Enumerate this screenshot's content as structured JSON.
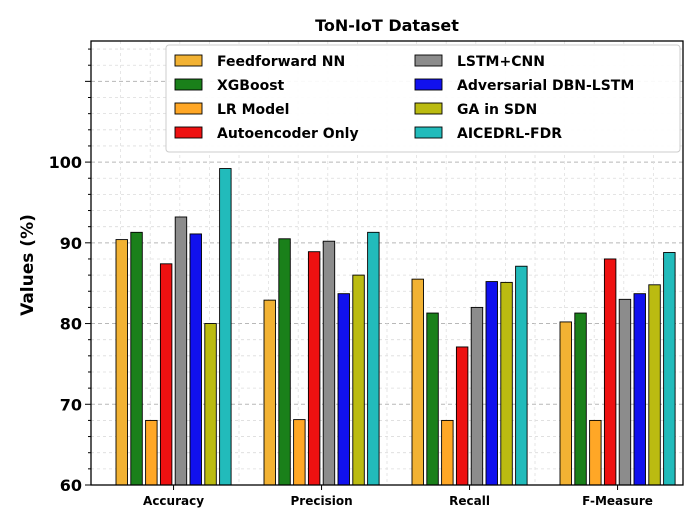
{
  "chart_data": {
    "type": "bar",
    "title": "ToN-IoT Dataset",
    "xlabel": "",
    "ylabel": "Values (%)",
    "ylim": [
      60,
      115
    ],
    "yticks": [
      60,
      70,
      80,
      90,
      100
    ],
    "grid": true,
    "legend_position": "top",
    "categories": [
      "Accuracy",
      "Precision",
      "Recall",
      "F-Measure"
    ],
    "series": [
      {
        "name": "Feedforward NN",
        "color": "#F2B233",
        "values": [
          90.4,
          82.9,
          85.5,
          80.2
        ]
      },
      {
        "name": "XGBoost",
        "color": "#1A801A",
        "values": [
          91.3,
          90.5,
          81.3,
          81.3
        ]
      },
      {
        "name": "LR Model",
        "color": "#FFA726",
        "values": [
          68.0,
          68.1,
          68.0,
          68.0
        ]
      },
      {
        "name": "Autoencoder Only",
        "color": "#EE1111",
        "values": [
          87.4,
          88.9,
          77.1,
          88.0
        ]
      },
      {
        "name": "LSTM+CNN",
        "color": "#8C8C8C",
        "values": [
          93.2,
          90.2,
          82.0,
          83.0
        ]
      },
      {
        "name": "Adversarial DBN-LSTM",
        "color": "#1111EE",
        "values": [
          91.1,
          83.7,
          85.2,
          83.7
        ]
      },
      {
        "name": "GA in SDN",
        "color": "#BBBB11",
        "values": [
          80.0,
          86.0,
          85.1,
          84.8
        ]
      },
      {
        "name": "AICEDRL-FDR",
        "color": "#22BBBB",
        "values": [
          99.2,
          91.3,
          87.1,
          88.8
        ]
      }
    ]
  }
}
